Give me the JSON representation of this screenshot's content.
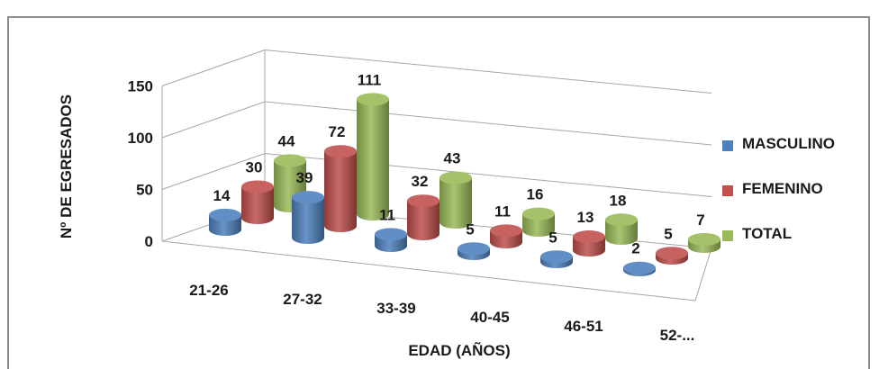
{
  "chart_data": {
    "type": "bar",
    "style": "3d-cylinder",
    "categories": [
      "21-26",
      "27-32",
      "33-39",
      "40-45",
      "46-51",
      "52-..."
    ],
    "series": [
      {
        "name": "MASCULINO",
        "color": "#4f81bd",
        "values": [
          14,
          39,
          11,
          5,
          5,
          2
        ]
      },
      {
        "name": "FEMENINO",
        "color": "#c0504d",
        "values": [
          30,
          72,
          32,
          11,
          13,
          5
        ]
      },
      {
        "name": "TOTAL",
        "color": "#9bbb59",
        "values": [
          44,
          111,
          43,
          16,
          18,
          7
        ]
      }
    ],
    "yticks": [
      0,
      50,
      100,
      150
    ],
    "ylim": [
      0,
      150
    ],
    "xlabel": "EDAD (AÑOS)",
    "ylabel": "Nº DE EGRESADOS",
    "legend_position": "right",
    "grid": true
  }
}
